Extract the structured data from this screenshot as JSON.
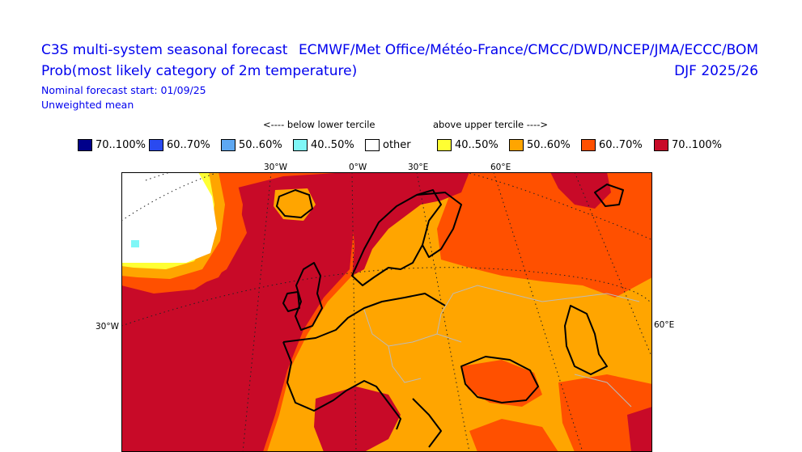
{
  "header": {
    "title_line1": "C3S multi-system seasonal forecast",
    "title_line2": "Prob(most likely category of 2m temperature)",
    "forecast_start": "Nominal forecast start: 01/09/25",
    "weighting": "Unweighted mean",
    "centres": "ECMWF/Met Office/Météo-France/CMCC/DWD/NCEP/JMA/ECCC/BOM",
    "season": "DJF 2025/26"
  },
  "legend": {
    "below_label": "<---- below lower tercile",
    "above_label": "above upper tercile ---->",
    "items": [
      {
        "label": "70..100%",
        "color": "#00008b"
      },
      {
        "label": "60..70%",
        "color": "#2a4af0"
      },
      {
        "label": "50..60%",
        "color": "#5ea8f2"
      },
      {
        "label": "40..50%",
        "color": "#7ff7f7"
      },
      {
        "label": "other",
        "color": "#ffffff"
      },
      {
        "label": "40..50%",
        "color": "#ffff33"
      },
      {
        "label": "50..60%",
        "color": "#ffa500"
      },
      {
        "label": "60..70%",
        "color": "#ff5000"
      },
      {
        "label": "70..100%",
        "color": "#c80a28"
      }
    ]
  },
  "map": {
    "lon_labels_top": [
      "30°W",
      "0°W",
      "30°E",
      "60°E"
    ],
    "lat_label_left": "30°W",
    "lat_label_right": "60°E",
    "colors": {
      "p70_100": "#c80a28",
      "p60_70": "#ff5000",
      "p50_60": "#ffa500",
      "p40_50": "#ffff33",
      "other": "#ffffff",
      "blue40_50": "#7ff7f7"
    }
  }
}
